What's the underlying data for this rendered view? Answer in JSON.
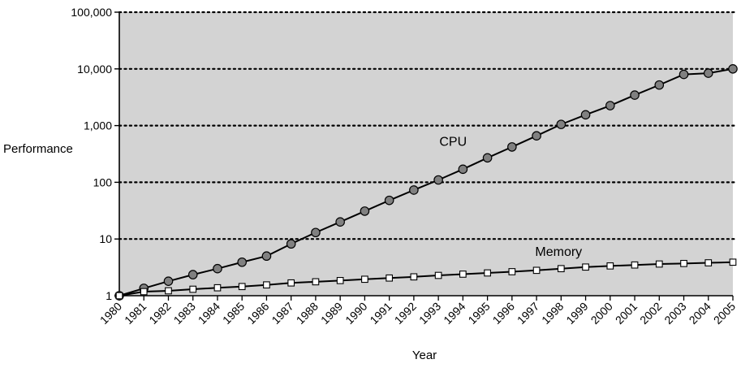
{
  "chart_data": {
    "type": "line",
    "title": "",
    "xlabel": "Year",
    "ylabel": "Performance",
    "y_scale": "log",
    "ylim": [
      1,
      100000
    ],
    "xlim": [
      1980,
      2005
    ],
    "y_ticks": [
      {
        "value": 1,
        "label": "1"
      },
      {
        "value": 10,
        "label": "10"
      },
      {
        "value": 100,
        "label": "100"
      },
      {
        "value": 1000,
        "label": "1,000"
      },
      {
        "value": 10000,
        "label": "10,000"
      },
      {
        "value": 100000,
        "label": "100,000"
      }
    ],
    "x": [
      1980,
      1981,
      1982,
      1983,
      1984,
      1985,
      1986,
      1987,
      1988,
      1989,
      1990,
      1991,
      1992,
      1993,
      1994,
      1995,
      1996,
      1997,
      1998,
      1999,
      2000,
      2001,
      2002,
      2003,
      2004,
      2005
    ],
    "x_tick_labels": [
      "1980",
      "1981",
      "1982",
      "1983",
      "1984",
      "1985",
      "1986",
      "1987",
      "1988",
      "1989",
      "1990",
      "1991",
      "1992",
      "1993",
      "1994",
      "1995",
      "1996",
      "1997",
      "1998",
      "1999",
      "2000",
      "2001",
      "2002",
      "2003",
      "2004",
      "2005"
    ],
    "grid": "horizontal dotted lines at major y ticks",
    "background_color": "#d3d3d3",
    "series": [
      {
        "name": "CPU",
        "marker": "circle",
        "marker_color": "#808080",
        "values": [
          1,
          1.35,
          1.8,
          2.35,
          3.0,
          3.9,
          5.0,
          8.2,
          13,
          20,
          31,
          48,
          73,
          110,
          170,
          270,
          420,
          660,
          1050,
          1550,
          2250,
          3450,
          5200,
          8000,
          8400,
          10000
        ]
      },
      {
        "name": "Memory",
        "marker": "square",
        "marker_color": "#ffffff",
        "values": [
          1,
          1.18,
          1.22,
          1.3,
          1.38,
          1.45,
          1.55,
          1.68,
          1.76,
          1.85,
          1.95,
          2.05,
          2.15,
          2.28,
          2.4,
          2.52,
          2.65,
          2.8,
          3.0,
          3.2,
          3.35,
          3.48,
          3.62,
          3.7,
          3.8,
          3.9
        ]
      }
    ],
    "annotations": [
      {
        "text": "CPU",
        "series": "CPU",
        "at_x": 1993.6,
        "at_y": 440
      },
      {
        "text": "Memory",
        "series": "Memory",
        "at_x": 1997.9,
        "at_y": 5.0
      }
    ]
  }
}
